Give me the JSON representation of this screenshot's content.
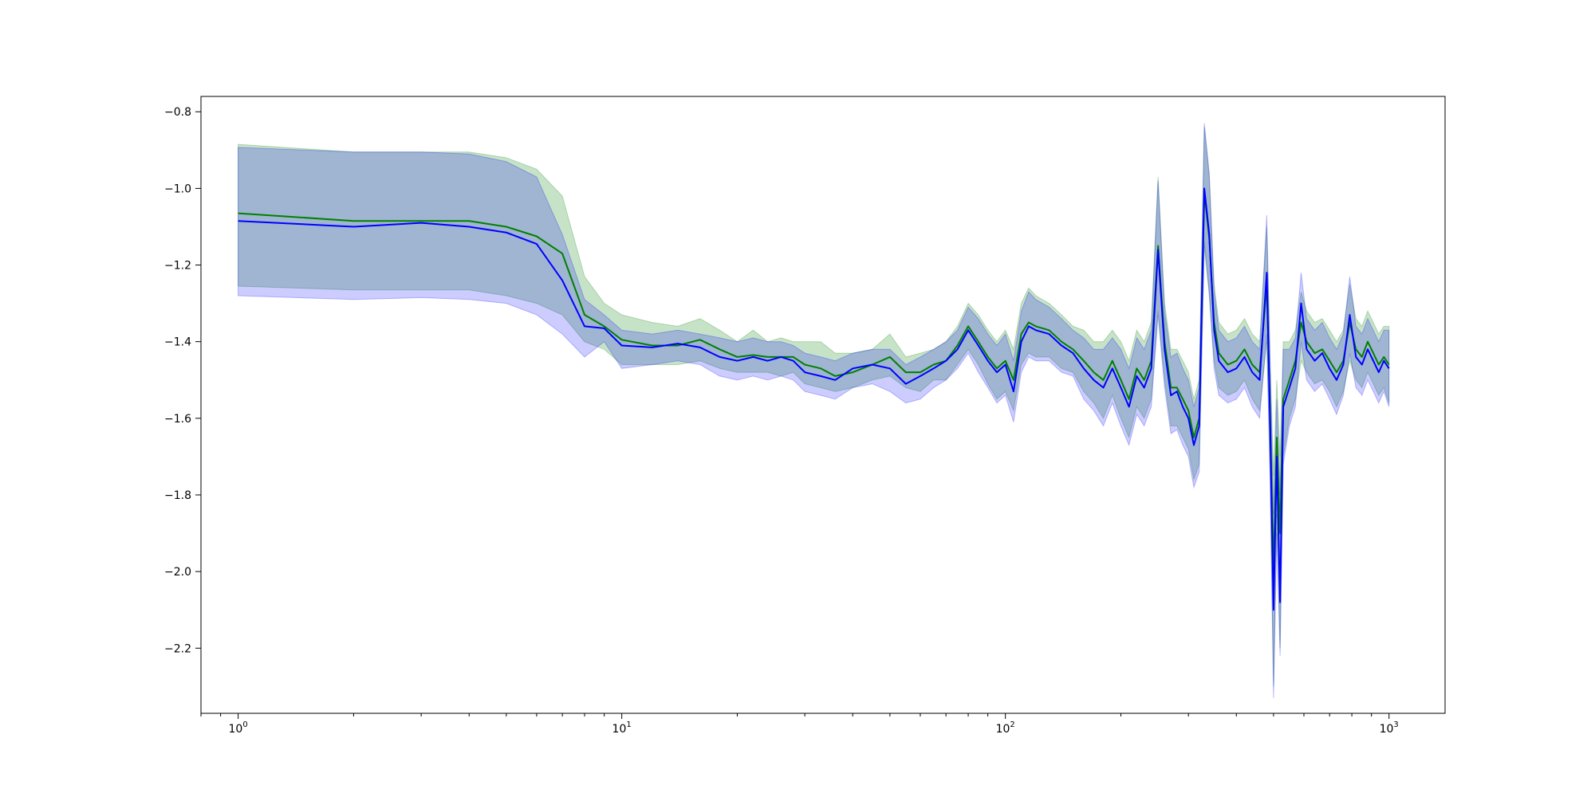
{
  "chart_data": {
    "type": "line",
    "title": "",
    "xlabel": "",
    "ylabel": "",
    "x_scale": "log",
    "xlim": [
      0.8,
      1400
    ],
    "ylim": [
      -2.37,
      -0.76
    ],
    "grid": false,
    "x_ticks": [
      {
        "value": 1,
        "base": "10",
        "exp": "0"
      },
      {
        "value": 10,
        "base": "10",
        "exp": "1"
      },
      {
        "value": 100,
        "base": "10",
        "exp": "2"
      },
      {
        "value": 1000,
        "base": "10",
        "exp": "3"
      }
    ],
    "y_ticks": [
      {
        "value": -0.8,
        "label": "−0.8"
      },
      {
        "value": -1.0,
        "label": "−1.0"
      },
      {
        "value": -1.2,
        "label": "−1.2"
      },
      {
        "value": -1.4,
        "label": "−1.4"
      },
      {
        "value": -1.6,
        "label": "−1.6"
      },
      {
        "value": -1.8,
        "label": "−1.8"
      },
      {
        "value": -2.0,
        "label": "−2.0"
      },
      {
        "value": -2.2,
        "label": "−2.2"
      }
    ],
    "series": [
      {
        "color": "#008000",
        "band_color": "#008000",
        "band_opacity": 0.22,
        "points": [
          [
            1,
            -1.065,
            -0.885,
            -1.255
          ],
          [
            2,
            -1.085,
            -0.905,
            -1.265
          ],
          [
            3,
            -1.085,
            -0.905,
            -1.265
          ],
          [
            4,
            -1.085,
            -0.905,
            -1.265
          ],
          [
            5,
            -1.1,
            -0.92,
            -1.28
          ],
          [
            6,
            -1.125,
            -0.95,
            -1.3
          ],
          [
            7,
            -1.17,
            -1.02,
            -1.33
          ],
          [
            8,
            -1.33,
            -1.23,
            -1.4
          ],
          [
            9,
            -1.36,
            -1.3,
            -1.42
          ],
          [
            10,
            -1.395,
            -1.33,
            -1.46
          ],
          [
            12,
            -1.41,
            -1.35,
            -1.46
          ],
          [
            14,
            -1.41,
            -1.36,
            -1.46
          ],
          [
            16,
            -1.395,
            -1.34,
            -1.45
          ],
          [
            18,
            -1.42,
            -1.37,
            -1.47
          ],
          [
            20,
            -1.44,
            -1.4,
            -1.48
          ],
          [
            22,
            -1.435,
            -1.37,
            -1.48
          ],
          [
            24,
            -1.44,
            -1.4,
            -1.48
          ],
          [
            26,
            -1.44,
            -1.39,
            -1.49
          ],
          [
            28,
            -1.44,
            -1.4,
            -1.48
          ],
          [
            30,
            -1.46,
            -1.4,
            -1.51
          ],
          [
            33,
            -1.47,
            -1.4,
            -1.52
          ],
          [
            36,
            -1.49,
            -1.43,
            -1.53
          ],
          [
            40,
            -1.48,
            -1.43,
            -1.52
          ],
          [
            45,
            -1.46,
            -1.42,
            -1.5
          ],
          [
            50,
            -1.44,
            -1.38,
            -1.49
          ],
          [
            55,
            -1.48,
            -1.44,
            -1.52
          ],
          [
            60,
            -1.48,
            -1.43,
            -1.53
          ],
          [
            65,
            -1.46,
            -1.42,
            -1.5
          ],
          [
            70,
            -1.45,
            -1.4,
            -1.5
          ],
          [
            75,
            -1.41,
            -1.36,
            -1.46
          ],
          [
            80,
            -1.36,
            -1.3,
            -1.42
          ],
          [
            85,
            -1.4,
            -1.33,
            -1.46
          ],
          [
            90,
            -1.44,
            -1.37,
            -1.51
          ],
          [
            95,
            -1.47,
            -1.4,
            -1.55
          ],
          [
            100,
            -1.45,
            -1.37,
            -1.53
          ],
          [
            105,
            -1.5,
            -1.42,
            -1.58
          ],
          [
            110,
            -1.38,
            -1.3,
            -1.46
          ],
          [
            115,
            -1.35,
            -1.26,
            -1.43
          ],
          [
            120,
            -1.36,
            -1.28,
            -1.44
          ],
          [
            130,
            -1.37,
            -1.3,
            -1.44
          ],
          [
            140,
            -1.4,
            -1.33,
            -1.47
          ],
          [
            150,
            -1.42,
            -1.36,
            -1.48
          ],
          [
            160,
            -1.45,
            -1.37,
            -1.53
          ],
          [
            170,
            -1.48,
            -1.4,
            -1.56
          ],
          [
            180,
            -1.5,
            -1.4,
            -1.6
          ],
          [
            190,
            -1.45,
            -1.37,
            -1.54
          ],
          [
            200,
            -1.5,
            -1.4,
            -1.6
          ],
          [
            210,
            -1.55,
            -1.45,
            -1.65
          ],
          [
            220,
            -1.47,
            -1.37,
            -1.57
          ],
          [
            230,
            -1.5,
            -1.4,
            -1.6
          ],
          [
            240,
            -1.45,
            -1.35,
            -1.55
          ],
          [
            250,
            -1.15,
            -0.97,
            -1.32
          ],
          [
            260,
            -1.4,
            -1.3,
            -1.5
          ],
          [
            270,
            -1.52,
            -1.42,
            -1.62
          ],
          [
            280,
            -1.52,
            -1.42,
            -1.62
          ],
          [
            290,
            -1.55,
            -1.45,
            -1.65
          ],
          [
            300,
            -1.58,
            -1.48,
            -1.68
          ],
          [
            310,
            -1.65,
            -1.55,
            -1.76
          ],
          [
            320,
            -1.6,
            -1.5,
            -1.72
          ],
          [
            330,
            -1.01,
            -0.84,
            -1.15
          ],
          [
            340,
            -1.13,
            -0.97,
            -1.28
          ],
          [
            350,
            -1.35,
            -1.25,
            -1.45
          ],
          [
            360,
            -1.43,
            -1.35,
            -1.52
          ],
          [
            380,
            -1.46,
            -1.38,
            -1.54
          ],
          [
            400,
            -1.45,
            -1.37,
            -1.53
          ],
          [
            420,
            -1.42,
            -1.34,
            -1.5
          ],
          [
            440,
            -1.46,
            -1.38,
            -1.55
          ],
          [
            460,
            -1.48,
            -1.4,
            -1.58
          ],
          [
            480,
            -1.25,
            -1.1,
            -1.4
          ],
          [
            490,
            -1.6,
            -1.45,
            -1.75
          ],
          [
            500,
            -2.0,
            -1.75,
            -2.3
          ],
          [
            510,
            -1.65,
            -1.5,
            -1.85
          ],
          [
            520,
            -1.9,
            -1.7,
            -2.2
          ],
          [
            530,
            -1.55,
            -1.4,
            -1.7
          ],
          [
            550,
            -1.5,
            -1.4,
            -1.6
          ],
          [
            570,
            -1.45,
            -1.37,
            -1.55
          ],
          [
            590,
            -1.35,
            -1.27,
            -1.45
          ],
          [
            610,
            -1.4,
            -1.32,
            -1.48
          ],
          [
            640,
            -1.43,
            -1.35,
            -1.51
          ],
          [
            670,
            -1.42,
            -1.34,
            -1.5
          ],
          [
            700,
            -1.45,
            -1.37,
            -1.53
          ],
          [
            730,
            -1.48,
            -1.4,
            -1.57
          ],
          [
            760,
            -1.45,
            -1.37,
            -1.53
          ],
          [
            790,
            -1.35,
            -1.25,
            -1.45
          ],
          [
            820,
            -1.42,
            -1.34,
            -1.5
          ],
          [
            850,
            -1.44,
            -1.36,
            -1.52
          ],
          [
            880,
            -1.4,
            -1.32,
            -1.48
          ],
          [
            910,
            -1.43,
            -1.35,
            -1.51
          ],
          [
            940,
            -1.46,
            -1.38,
            -1.54
          ],
          [
            970,
            -1.44,
            -1.36,
            -1.52
          ],
          [
            1000,
            -1.46,
            -1.36,
            -1.56
          ]
        ]
      },
      {
        "color": "#0000ff",
        "band_color": "#0000ff",
        "band_opacity": 0.2,
        "points": [
          [
            1,
            -1.085,
            -0.893,
            -1.28
          ],
          [
            2,
            -1.1,
            -0.905,
            -1.29
          ],
          [
            3,
            -1.09,
            -0.905,
            -1.285
          ],
          [
            4,
            -1.1,
            -0.91,
            -1.29
          ],
          [
            5,
            -1.115,
            -0.93,
            -1.3
          ],
          [
            6,
            -1.145,
            -0.97,
            -1.33
          ],
          [
            7,
            -1.24,
            -1.12,
            -1.38
          ],
          [
            8,
            -1.36,
            -1.29,
            -1.44
          ],
          [
            9,
            -1.365,
            -1.33,
            -1.4
          ],
          [
            10,
            -1.41,
            -1.37,
            -1.47
          ],
          [
            12,
            -1.415,
            -1.38,
            -1.46
          ],
          [
            14,
            -1.405,
            -1.37,
            -1.45
          ],
          [
            16,
            -1.415,
            -1.38,
            -1.46
          ],
          [
            18,
            -1.44,
            -1.39,
            -1.49
          ],
          [
            20,
            -1.45,
            -1.4,
            -1.5
          ],
          [
            22,
            -1.44,
            -1.39,
            -1.49
          ],
          [
            24,
            -1.45,
            -1.4,
            -1.5
          ],
          [
            26,
            -1.44,
            -1.4,
            -1.49
          ],
          [
            28,
            -1.45,
            -1.41,
            -1.5
          ],
          [
            30,
            -1.48,
            -1.43,
            -1.53
          ],
          [
            33,
            -1.49,
            -1.44,
            -1.54
          ],
          [
            36,
            -1.5,
            -1.45,
            -1.55
          ],
          [
            40,
            -1.47,
            -1.43,
            -1.52
          ],
          [
            45,
            -1.46,
            -1.42,
            -1.51
          ],
          [
            50,
            -1.47,
            -1.42,
            -1.53
          ],
          [
            55,
            -1.51,
            -1.46,
            -1.56
          ],
          [
            60,
            -1.49,
            -1.44,
            -1.55
          ],
          [
            65,
            -1.47,
            -1.42,
            -1.52
          ],
          [
            70,
            -1.45,
            -1.4,
            -1.5
          ],
          [
            75,
            -1.42,
            -1.37,
            -1.47
          ],
          [
            80,
            -1.37,
            -1.31,
            -1.43
          ],
          [
            85,
            -1.41,
            -1.34,
            -1.48
          ],
          [
            90,
            -1.45,
            -1.38,
            -1.52
          ],
          [
            95,
            -1.48,
            -1.41,
            -1.56
          ],
          [
            100,
            -1.46,
            -1.38,
            -1.54
          ],
          [
            105,
            -1.53,
            -1.45,
            -1.61
          ],
          [
            110,
            -1.4,
            -1.32,
            -1.48
          ],
          [
            115,
            -1.36,
            -1.27,
            -1.44
          ],
          [
            120,
            -1.37,
            -1.29,
            -1.45
          ],
          [
            130,
            -1.38,
            -1.31,
            -1.45
          ],
          [
            140,
            -1.41,
            -1.34,
            -1.48
          ],
          [
            150,
            -1.43,
            -1.37,
            -1.49
          ],
          [
            160,
            -1.47,
            -1.39,
            -1.55
          ],
          [
            170,
            -1.5,
            -1.42,
            -1.58
          ],
          [
            180,
            -1.52,
            -1.42,
            -1.62
          ],
          [
            190,
            -1.47,
            -1.39,
            -1.56
          ],
          [
            200,
            -1.52,
            -1.42,
            -1.62
          ],
          [
            210,
            -1.57,
            -1.47,
            -1.67
          ],
          [
            220,
            -1.49,
            -1.39,
            -1.59
          ],
          [
            230,
            -1.52,
            -1.42,
            -1.62
          ],
          [
            240,
            -1.47,
            -1.37,
            -1.57
          ],
          [
            250,
            -1.16,
            -0.98,
            -1.33
          ],
          [
            260,
            -1.42,
            -1.32,
            -1.52
          ],
          [
            270,
            -1.54,
            -1.44,
            -1.64
          ],
          [
            280,
            -1.53,
            -1.43,
            -1.63
          ],
          [
            290,
            -1.57,
            -1.47,
            -1.67
          ],
          [
            300,
            -1.6,
            -1.5,
            -1.7
          ],
          [
            310,
            -1.67,
            -1.57,
            -1.78
          ],
          [
            320,
            -1.62,
            -1.52,
            -1.74
          ],
          [
            330,
            -1.0,
            -0.83,
            -1.14
          ],
          [
            340,
            -1.12,
            -0.96,
            -1.27
          ],
          [
            350,
            -1.37,
            -1.27,
            -1.47
          ],
          [
            360,
            -1.45,
            -1.37,
            -1.54
          ],
          [
            380,
            -1.48,
            -1.4,
            -1.56
          ],
          [
            400,
            -1.47,
            -1.39,
            -1.55
          ],
          [
            420,
            -1.44,
            -1.36,
            -1.52
          ],
          [
            440,
            -1.48,
            -1.4,
            -1.57
          ],
          [
            460,
            -1.5,
            -1.42,
            -1.6
          ],
          [
            480,
            -1.22,
            -1.07,
            -1.38
          ],
          [
            490,
            -1.62,
            -1.47,
            -1.77
          ],
          [
            500,
            -2.1,
            -1.85,
            -2.33
          ],
          [
            510,
            -1.7,
            -1.55,
            -1.9
          ],
          [
            520,
            -2.08,
            -1.8,
            -2.22
          ],
          [
            530,
            -1.57,
            -1.42,
            -1.72
          ],
          [
            550,
            -1.52,
            -1.42,
            -1.62
          ],
          [
            570,
            -1.47,
            -1.39,
            -1.57
          ],
          [
            590,
            -1.3,
            -1.22,
            -1.4
          ],
          [
            610,
            -1.42,
            -1.34,
            -1.5
          ],
          [
            640,
            -1.45,
            -1.37,
            -1.53
          ],
          [
            670,
            -1.43,
            -1.35,
            -1.51
          ],
          [
            700,
            -1.47,
            -1.39,
            -1.55
          ],
          [
            730,
            -1.5,
            -1.42,
            -1.59
          ],
          [
            760,
            -1.46,
            -1.38,
            -1.54
          ],
          [
            790,
            -1.33,
            -1.23,
            -1.43
          ],
          [
            820,
            -1.44,
            -1.36,
            -1.52
          ],
          [
            850,
            -1.46,
            -1.38,
            -1.54
          ],
          [
            880,
            -1.42,
            -1.34,
            -1.5
          ],
          [
            910,
            -1.45,
            -1.37,
            -1.53
          ],
          [
            940,
            -1.48,
            -1.4,
            -1.56
          ],
          [
            970,
            -1.45,
            -1.37,
            -1.53
          ],
          [
            1000,
            -1.47,
            -1.37,
            -1.57
          ]
        ]
      }
    ]
  }
}
